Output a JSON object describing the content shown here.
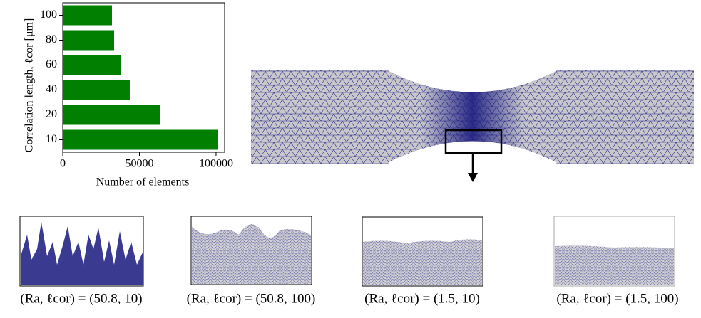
{
  "chart_data": {
    "type": "barh",
    "xlabel": "Number of elements",
    "ylabel": "Correlation length, ℓcor [μm]",
    "categories": [
      "10",
      "20",
      "40",
      "60",
      "80",
      "100"
    ],
    "values": [
      101000,
      63300,
      43700,
      38100,
      33500,
      32100
    ],
    "color": "#007f00",
    "xlim": [
      0,
      105600
    ],
    "xticks": [
      0,
      50000,
      100000
    ],
    "grid": false
  },
  "panels": [
    {
      "caption": "(Ra, ℓcor) = (50.8, 10)"
    },
    {
      "caption": "(Ra, ℓcor) = (50.8, 100)"
    },
    {
      "caption": "(Ra, ℓcor) = (1.5, 10)"
    },
    {
      "caption": "(Ra, ℓcor) = (1.5, 100)"
    }
  ]
}
